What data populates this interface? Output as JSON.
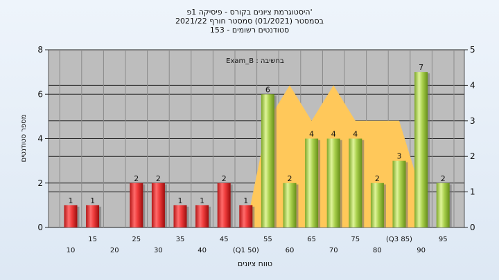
{
  "chart_data": {
    "type": "bar",
    "title": "היסטוגרמת ציונים בקורס - פיסיקה 1פ'",
    "subtitle_1": "בסמסטר  (01/2021)  סמסטר חורף 2021/22",
    "subtitle_2": "סטודנטים רשומים - 153",
    "annotation": "Exam_B : בחשיבה",
    "xlabel": "טווח ציונים",
    "ylabel": "מספר סטודנטים",
    "ylim": [
      0,
      8
    ],
    "y2lim": [
      0,
      5
    ],
    "yticks": [
      "0",
      "2",
      "4",
      "6",
      "8"
    ],
    "y2ticks": [
      "0",
      "1",
      "2",
      "3",
      "4",
      "5"
    ],
    "grid": true,
    "categories": [
      "10",
      "15",
      "20",
      "25",
      "30",
      "35",
      "40",
      "45",
      "50",
      "55",
      "60",
      "65",
      "70",
      "75",
      "80",
      "85",
      "90",
      "95"
    ],
    "tick_labels": [
      "10",
      "15",
      "20",
      "25",
      "30",
      "35",
      "40",
      "45",
      "(Q1 50)",
      "55",
      "60",
      "65",
      "70",
      "75",
      "80",
      "(Q3 85)",
      "90",
      "95"
    ],
    "values": [
      1,
      1,
      0,
      2,
      2,
      1,
      1,
      2,
      1,
      6,
      2,
      4,
      4,
      4,
      2,
      3,
      7,
      2
    ],
    "value_labels": [
      "1",
      "1",
      "",
      "2",
      "2",
      "1",
      "1",
      "2",
      "1",
      "6",
      "2",
      "4",
      "4",
      "4",
      "2",
      "3",
      "7",
      "2"
    ],
    "bar_colors": [
      "red",
      "red",
      "red",
      "red",
      "red",
      "red",
      "red",
      "red",
      "red",
      "green",
      "green",
      "green",
      "green",
      "green",
      "green",
      "green",
      "green",
      "green"
    ],
    "area": {
      "x": [
        "50",
        "55",
        "60",
        "65",
        "70",
        "75",
        "80",
        "85",
        "90"
      ],
      "values": [
        0,
        3,
        4,
        3,
        4,
        3,
        3,
        3,
        1
      ],
      "color": "#ffc85a"
    },
    "colors": {
      "red_light": "#ff7070",
      "red_dark": "#a80f0f",
      "green_light": "#d6ee8e",
      "green_dark": "#6f9a1e",
      "plot_bg": "#bdbdbd",
      "grid": "#000000"
    }
  }
}
